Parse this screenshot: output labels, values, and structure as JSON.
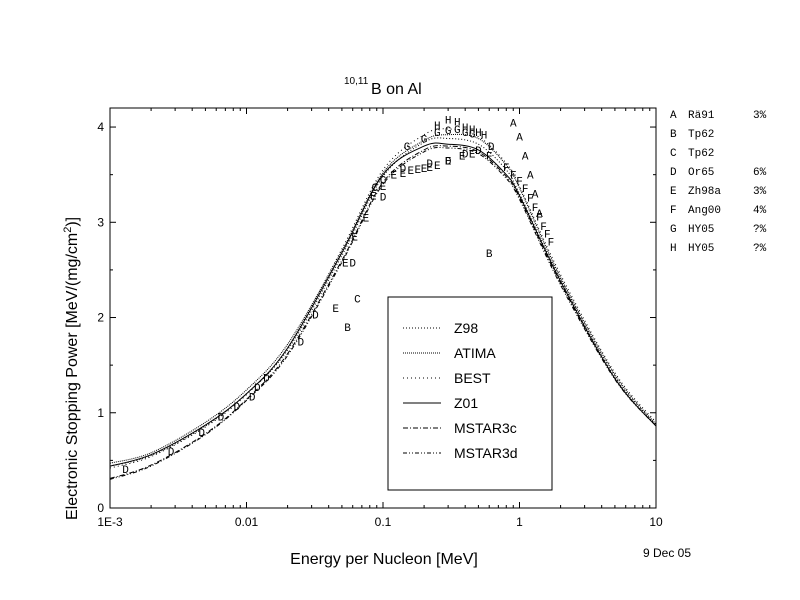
{
  "chart_data": {
    "type": "line",
    "title_prefix": "10,11",
    "title_main": "B on Al",
    "xlabel": "Energy per Nucleon [MeV]",
    "ylabel_main": "Electronic Stopping Power [MeV/(mg/cm",
    "ylabel_sup": "2",
    "ylabel_end": ")]",
    "xscale": "log",
    "xlim": [
      0.001,
      10
    ],
    "ylim": [
      0,
      4.2
    ],
    "grid": false,
    "legend_position": "center-bottom",
    "x_ticks": [
      {
        "value": 0.001,
        "label": "1E-3"
      },
      {
        "value": 0.01,
        "label": "0.01"
      },
      {
        "value": 0.1,
        "label": "0.1"
      },
      {
        "value": 1,
        "label": "1"
      },
      {
        "value": 10,
        "label": "10"
      }
    ],
    "y_ticks": [
      {
        "value": 0,
        "label": "0"
      },
      {
        "value": 1,
        "label": "1"
      },
      {
        "value": 2,
        "label": "2"
      },
      {
        "value": 3,
        "label": "3"
      },
      {
        "value": 4,
        "label": "4"
      }
    ],
    "series": [
      {
        "name": "Z98",
        "dash": "1,2",
        "x": [
          0.001,
          0.002,
          0.005,
          0.01,
          0.02,
          0.05,
          0.1,
          0.2,
          0.3,
          0.5,
          0.8,
          1,
          2,
          5,
          10
        ],
        "y": [
          0.44,
          0.55,
          0.86,
          1.2,
          1.66,
          2.65,
          3.48,
          3.84,
          3.88,
          3.82,
          3.55,
          3.3,
          2.4,
          1.38,
          0.87
        ]
      },
      {
        "name": "ATIMA",
        "dash": "1,1",
        "x": [
          0.001,
          0.002,
          0.005,
          0.01,
          0.02,
          0.05,
          0.1,
          0.2,
          0.3,
          0.5,
          0.8,
          1,
          2,
          5,
          10
        ],
        "y": [
          0.47,
          0.58,
          0.9,
          1.24,
          1.72,
          2.7,
          3.52,
          3.86,
          3.92,
          3.88,
          3.6,
          3.36,
          2.42,
          1.4,
          0.88
        ]
      },
      {
        "name": "BEST",
        "dash": "1,3",
        "x": [
          0.001,
          0.002,
          0.005,
          0.01,
          0.02,
          0.05,
          0.1,
          0.2,
          0.3,
          0.5,
          0.8,
          1,
          2,
          5,
          10
        ],
        "y": [
          0.42,
          0.54,
          0.85,
          1.19,
          1.68,
          2.72,
          3.55,
          3.92,
          3.98,
          3.9,
          3.62,
          3.38,
          2.45,
          1.42,
          0.9
        ]
      },
      {
        "name": "Z01",
        "dash": "",
        "x": [
          0.001,
          0.002,
          0.005,
          0.01,
          0.02,
          0.05,
          0.1,
          0.2,
          0.3,
          0.5,
          0.8,
          1,
          2,
          5,
          10
        ],
        "y": [
          0.44,
          0.56,
          0.87,
          1.2,
          1.68,
          2.68,
          3.5,
          3.8,
          3.82,
          3.76,
          3.5,
          3.28,
          2.38,
          1.36,
          0.86
        ]
      },
      {
        "name": "MSTAR3c",
        "dash": "5,2,1,2",
        "x": [
          0.001,
          0.002,
          0.005,
          0.01,
          0.02,
          0.05,
          0.1,
          0.2,
          0.3,
          0.5,
          0.8,
          1,
          2,
          5,
          10
        ],
        "y": [
          0.31,
          0.45,
          0.78,
          1.14,
          1.62,
          2.6,
          3.42,
          3.76,
          3.8,
          3.74,
          3.48,
          3.26,
          2.36,
          1.36,
          0.86
        ]
      },
      {
        "name": "MSTAR3d",
        "dash": "4,2,1,2,1,2",
        "x": [
          0.001,
          0.002,
          0.005,
          0.01,
          0.02,
          0.05,
          0.1,
          0.2,
          0.3,
          0.5,
          0.8,
          1,
          2,
          5,
          10
        ],
        "y": [
          0.3,
          0.44,
          0.77,
          1.13,
          1.6,
          2.58,
          3.4,
          3.74,
          3.78,
          3.72,
          3.46,
          3.24,
          2.34,
          1.35,
          0.86
        ]
      }
    ],
    "markers": [
      {
        "label": "A",
        "x": [
          0.9,
          1.0,
          1.1,
          1.2,
          1.3,
          1.4
        ],
        "y": [
          4.05,
          3.9,
          3.7,
          3.5,
          3.3,
          3.1
        ]
      },
      {
        "label": "B",
        "x": [
          0.055,
          0.6
        ],
        "y": [
          1.9,
          2.68
        ]
      },
      {
        "label": "C",
        "x": [
          0.065,
          0.087,
          0.1
        ],
        "y": [
          2.2,
          3.37,
          3.45
        ]
      },
      {
        "label": "D",
        "x": [
          0.0013,
          0.0028,
          0.0047,
          0.0065,
          0.0085,
          0.011,
          0.012,
          0.014,
          0.025,
          0.032,
          0.06,
          0.1,
          0.14,
          0.22,
          0.3,
          0.4,
          0.5,
          0.62
        ],
        "y": [
          0.41,
          0.6,
          0.8,
          0.96,
          1.07,
          1.17,
          1.27,
          1.37,
          1.75,
          2.03,
          2.58,
          3.27,
          3.57,
          3.62,
          3.65,
          3.72,
          3.76,
          3.8
        ]
      },
      {
        "label": "E",
        "x": [
          0.045,
          0.053,
          0.062,
          0.075,
          0.085,
          0.1,
          0.12,
          0.14,
          0.16,
          0.18,
          0.2,
          0.22,
          0.25,
          0.3,
          0.38,
          0.45
        ],
        "y": [
          2.1,
          2.58,
          2.85,
          3.05,
          3.28,
          3.38,
          3.5,
          3.52,
          3.55,
          3.56,
          3.57,
          3.58,
          3.6,
          3.65,
          3.7,
          3.72
        ]
      },
      {
        "label": "F",
        "x": [
          0.6,
          0.8,
          0.9,
          1.0,
          1.1,
          1.2,
          1.3,
          1.4,
          1.5,
          1.6,
          1.7
        ],
        "y": [
          3.7,
          3.58,
          3.5,
          3.44,
          3.36,
          3.26,
          3.16,
          3.06,
          2.96,
          2.88,
          2.8
        ]
      },
      {
        "label": "G",
        "x": [
          0.15,
          0.2,
          0.25,
          0.3,
          0.35,
          0.4,
          0.45
        ],
        "y": [
          3.8,
          3.88,
          3.95,
          3.97,
          3.98,
          3.95,
          3.93
        ]
      },
      {
        "label": "H",
        "x": [
          0.25,
          0.3,
          0.35,
          0.4,
          0.45,
          0.5,
          0.55
        ],
        "y": [
          4.02,
          4.08,
          4.06,
          4.0,
          3.98,
          3.95,
          3.92
        ]
      }
    ],
    "legend": {
      "entries": [
        "Z98",
        "ATIMA",
        "BEST",
        "Z01",
        "MSTAR3c",
        "MSTAR3d"
      ]
    },
    "references": [
      {
        "letter": "A",
        "ref": "Rä91",
        "uncert": "3%"
      },
      {
        "letter": "B",
        "ref": "Tp62",
        "uncert": ""
      },
      {
        "letter": "C",
        "ref": "Tp62",
        "uncert": ""
      },
      {
        "letter": "D",
        "ref": "Or65",
        "uncert": "6%"
      },
      {
        "letter": "E",
        "ref": "Zh98a",
        "uncert": "3%"
      },
      {
        "letter": "F",
        "ref": "Ang00",
        "uncert": "4%"
      },
      {
        "letter": "G",
        "ref": "HY05",
        "uncert": "?%"
      },
      {
        "letter": "H",
        "ref": "HY05",
        "uncert": "?%"
      }
    ],
    "date": "9 Dec 05"
  }
}
